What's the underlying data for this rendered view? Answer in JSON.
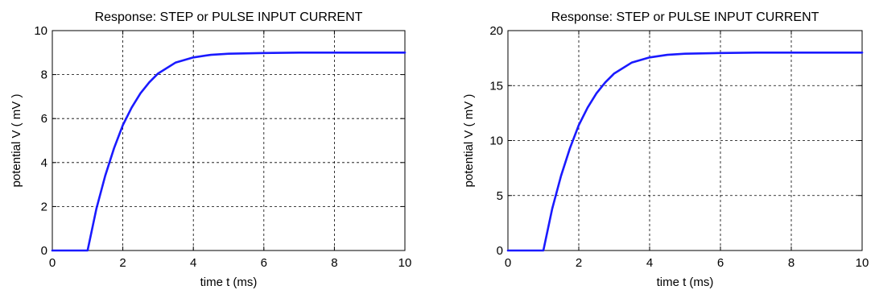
{
  "chart_data": [
    {
      "type": "line",
      "title": "Response: STEP or PULSE INPUT CURRENT",
      "xlabel": "time  t  (ms)",
      "ylabel": "potential  V  ( mV )",
      "xlim": [
        0,
        10
      ],
      "ylim": [
        0,
        10
      ],
      "xticks": [
        0,
        2,
        4,
        6,
        8,
        10
      ],
      "yticks": [
        0,
        2,
        4,
        6,
        8,
        10
      ],
      "grid": true,
      "series": [
        {
          "color": "#1a1aff",
          "x": [
            0,
            1,
            1.25,
            1.5,
            1.75,
            2,
            2.25,
            2.5,
            2.75,
            3,
            3.5,
            4,
            4.5,
            5,
            6,
            7,
            8,
            9,
            10
          ],
          "y": [
            0,
            0,
            1.9,
            3.4,
            4.65,
            5.7,
            6.5,
            7.15,
            7.65,
            8.05,
            8.55,
            8.78,
            8.9,
            8.95,
            8.98,
            9.0,
            9.0,
            9.0,
            9.0
          ]
        }
      ]
    },
    {
      "type": "line",
      "title": "Response: STEP or PULSE INPUT CURRENT",
      "xlabel": "time  t  (ms)",
      "ylabel": "potential  V  ( mV )",
      "xlim": [
        0,
        10
      ],
      "ylim": [
        0,
        20
      ],
      "xticks": [
        0,
        2,
        4,
        6,
        8,
        10
      ],
      "yticks": [
        0,
        5,
        10,
        15,
        20
      ],
      "grid": true,
      "series": [
        {
          "color": "#1a1aff",
          "x": [
            0,
            1,
            1.25,
            1.5,
            1.75,
            2,
            2.25,
            2.5,
            2.75,
            3,
            3.5,
            4,
            4.5,
            5,
            6,
            7,
            8,
            9,
            10
          ],
          "y": [
            0,
            0,
            3.8,
            6.8,
            9.3,
            11.4,
            13.0,
            14.3,
            15.3,
            16.1,
            17.1,
            17.56,
            17.8,
            17.9,
            17.96,
            18.0,
            18.0,
            18.0,
            18.0
          ]
        }
      ]
    }
  ]
}
